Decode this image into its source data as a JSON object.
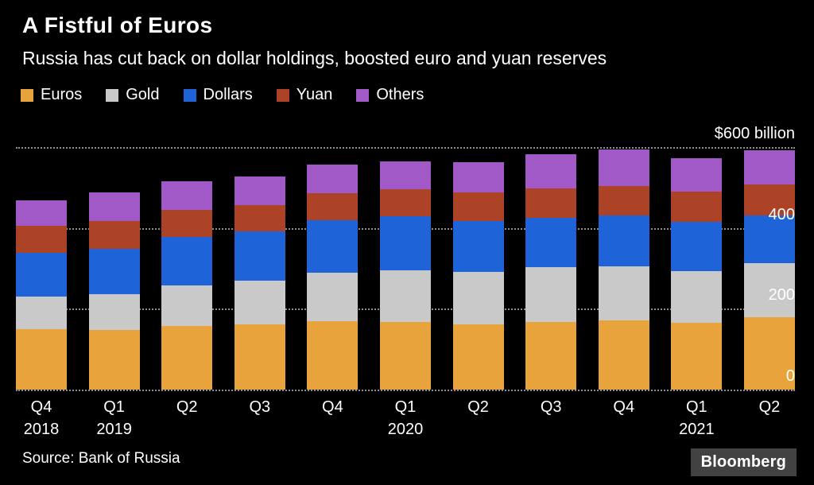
{
  "header": {
    "title": "A Fistful of Euros",
    "subtitle": "Russia has cut back on dollar holdings, boosted euro and yuan reserves"
  },
  "chart_data": {
    "type": "bar",
    "stacked": true,
    "title": "A Fistful of Euros",
    "subtitle": "Russia has cut back on dollar holdings, boosted euro and yuan reserves",
    "unit": "$ billion",
    "ylim": [
      0,
      600
    ],
    "grid": "dotted-horizontal",
    "legend_position": "top",
    "categories": [
      "Q4 2018",
      "Q1 2019",
      "Q2 2019",
      "Q3 2019",
      "Q4 2019",
      "Q1 2020",
      "Q2 2020",
      "Q3 2020",
      "Q4 2020",
      "Q1 2021",
      "Q2 2021"
    ],
    "x_labels": [
      {
        "quarter": "Q4",
        "year": "2018"
      },
      {
        "quarter": "Q1",
        "year": "2019"
      },
      {
        "quarter": "Q2",
        "year": ""
      },
      {
        "quarter": "Q3",
        "year": ""
      },
      {
        "quarter": "Q4",
        "year": ""
      },
      {
        "quarter": "Q1",
        "year": "2020"
      },
      {
        "quarter": "Q2",
        "year": ""
      },
      {
        "quarter": "Q3",
        "year": ""
      },
      {
        "quarter": "Q4",
        "year": ""
      },
      {
        "quarter": "Q1",
        "year": "2021"
      },
      {
        "quarter": "Q2",
        "year": ""
      }
    ],
    "yticks": [
      {
        "value": 600,
        "label": "$600 billion"
      },
      {
        "value": 400,
        "label": "400"
      },
      {
        "value": 200,
        "label": "200"
      },
      {
        "value": 0,
        "label": "0"
      }
    ],
    "series": [
      {
        "name": "Euros",
        "color": "#E8A33D",
        "values": [
          150,
          148,
          158,
          162,
          170,
          168,
          162,
          168,
          172,
          165,
          180
        ]
      },
      {
        "name": "Gold",
        "color": "#C9C9C9",
        "values": [
          80,
          88,
          100,
          108,
          120,
          128,
          130,
          135,
          133,
          128,
          132
        ]
      },
      {
        "name": "Dollars",
        "color": "#1F63D8",
        "values": [
          108,
          112,
          120,
          122,
          130,
          132,
          125,
          122,
          125,
          122,
          118
        ]
      },
      {
        "name": "Yuan",
        "color": "#AC4327",
        "values": [
          68,
          70,
          66,
          64,
          66,
          68,
          70,
          72,
          74,
          75,
          78
        ]
      },
      {
        "name": "Others",
        "color": "#A159C8",
        "values": [
          62,
          70,
          72,
          72,
          70,
          68,
          76,
          85,
          90,
          82,
          84
        ]
      }
    ]
  },
  "footer": {
    "source": "Source: Bank of Russia",
    "brand": "Bloomberg"
  }
}
